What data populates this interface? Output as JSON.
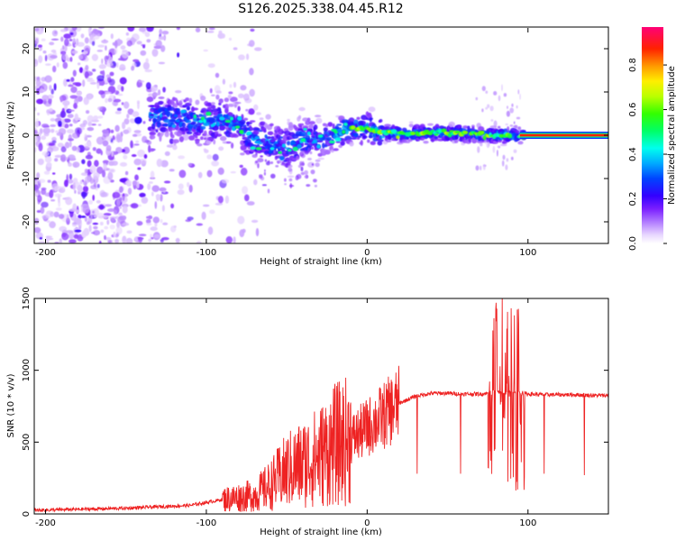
{
  "title": "S126.2025.338.04.45.R12",
  "chart_data": [
    {
      "type": "heatmap",
      "xlabel": "Height of straight line (km)",
      "ylabel": "Frequency (Hz)",
      "xlim": [
        -207,
        150
      ],
      "ylim": [
        -25,
        25
      ],
      "xticks": [
        "-200",
        "-100",
        "0",
        "100"
      ],
      "xtick_values": [
        -200,
        -100,
        0,
        100
      ],
      "yticks": [
        "-20",
        "-10",
        "0",
        "10",
        "20"
      ],
      "ytick_values": [
        -20,
        -10,
        0,
        10,
        20
      ],
      "colorbar": {
        "label": "Normalized spectral amplitude",
        "range": [
          0,
          0.97
        ],
        "ticks": [
          "0.0",
          "0.2",
          "0.4",
          "0.6",
          "0.8"
        ],
        "tick_values": [
          0.0,
          0.2,
          0.4,
          0.6,
          0.8
        ],
        "colors": [
          "#ffffff",
          "#d9b3ff",
          "#8a2be2",
          "#6a00ff",
          "#0000ff",
          "#00bfff",
          "#00ffcc",
          "#00ff00",
          "#aaff00",
          "#ffff00",
          "#ff8800",
          "#ff0000",
          "#ff007f"
        ]
      },
      "ridge": {
        "x": [
          -130,
          -120,
          -110,
          -100,
          -90,
          -80,
          -70,
          -60,
          -50,
          -40,
          -30,
          -20,
          -10,
          0,
          10,
          20,
          40,
          60,
          80,
          95,
          150
        ],
        "y": [
          4.5,
          4,
          3.5,
          3,
          3.5,
          2,
          -1,
          -2,
          -3,
          -1,
          -1.5,
          0,
          2,
          1.5,
          0.5,
          0.3,
          0.5,
          0.5,
          0,
          0,
          0
        ]
      }
    },
    {
      "type": "line",
      "xlabel": "Height of straight line (km)",
      "ylabel": "SNR (10 * v/v)",
      "xlim": [
        -207,
        150
      ],
      "ylim": [
        0,
        1500
      ],
      "xticks": [
        "-200",
        "-100",
        "0",
        "100"
      ],
      "xtick_values": [
        -200,
        -100,
        0,
        100
      ],
      "yticks": [
        "0",
        "500",
        "1000",
        "1500"
      ],
      "ytick_values": [
        0,
        500,
        1000,
        1500
      ],
      "color": "#ee2222",
      "profile": {
        "x": [
          -207,
          -150,
          -110,
          -90,
          -70,
          -60,
          -50,
          -40,
          -30,
          -20,
          -10,
          0,
          10,
          20,
          30,
          40,
          50,
          60,
          70,
          75,
          80,
          85,
          90,
          95,
          100,
          110,
          120,
          130,
          140,
          150
        ],
        "y": [
          25,
          40,
          60,
          100,
          130,
          200,
          300,
          350,
          400,
          480,
          520,
          600,
          680,
          770,
          820,
          840,
          840,
          835,
          835,
          840,
          850,
          840,
          845,
          840,
          835,
          830,
          830,
          830,
          825,
          825
        ]
      },
      "dips": [
        {
          "x": 31,
          "y": 280
        },
        {
          "x": 58,
          "y": 280
        },
        {
          "x": 110,
          "y": 280
        },
        {
          "x": 135,
          "y": 270
        }
      ],
      "spike_region": [
        75,
        98
      ]
    }
  ]
}
